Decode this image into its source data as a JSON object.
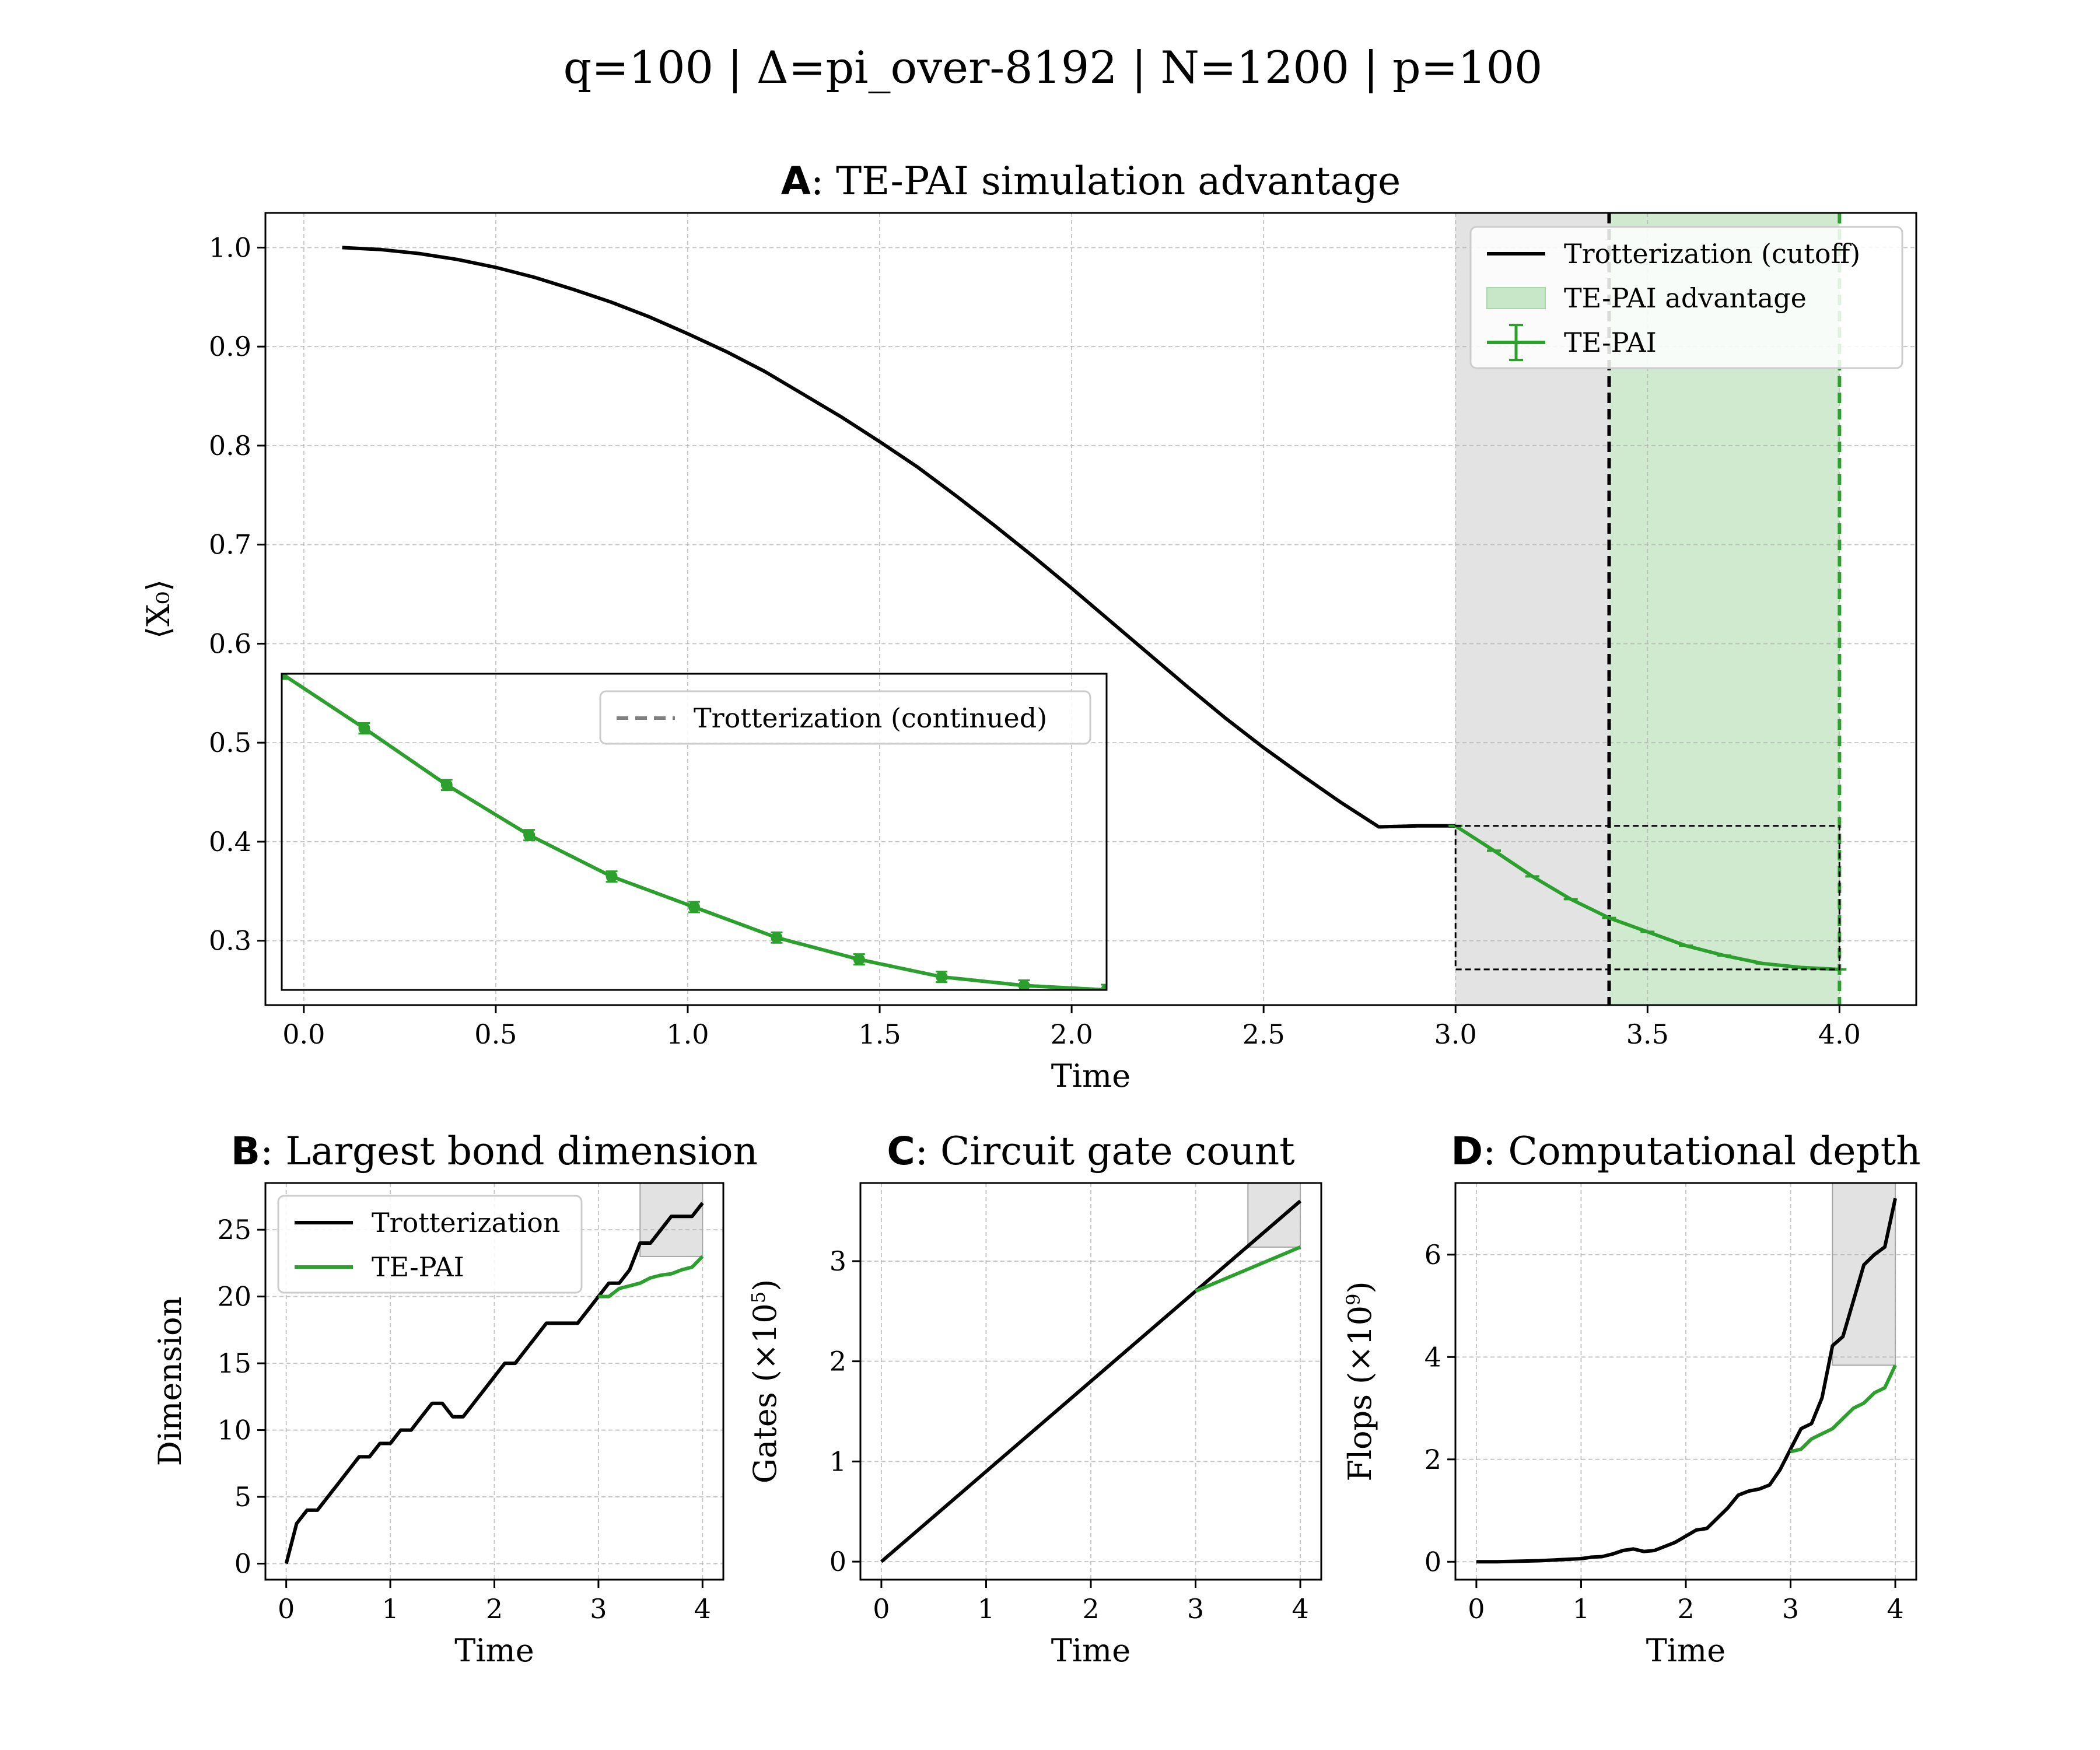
{
  "figure": {
    "suptitle": "q=100 | Δ=pi_over-8192 | N=1200 | p=100"
  },
  "colors": {
    "trotter": "#000000",
    "tepai": "#2ca02c",
    "continued": "#808080",
    "gray_shade": "#d9d9d9",
    "green_shade": "#c8e6c8"
  },
  "chart_data": [
    {
      "id": "A",
      "type": "line",
      "title_letter": "A",
      "title": ": TE-PAI simulation advantage",
      "xlabel": "Time",
      "ylabel": "⟨X₀⟩",
      "xlim": [
        -0.1,
        4.2
      ],
      "ylim": [
        0.235,
        1.035
      ],
      "xticks": [
        "0.0",
        "0.5",
        "1.0",
        "1.5",
        "2.0",
        "2.5",
        "3.0",
        "3.5",
        "4.0"
      ],
      "yticks": [
        "0.3",
        "0.4",
        "0.5",
        "0.6",
        "0.7",
        "0.8",
        "0.9",
        "1.0"
      ],
      "grid": true,
      "legend_position": "top-right",
      "legend": [
        "Trotterization (cutoff)",
        "TE-PAI advantage",
        "TE-PAI"
      ],
      "shaded_regions": [
        {
          "kind": "gray",
          "x": [
            3.0,
            3.4
          ]
        },
        {
          "kind": "green",
          "label": "TE-PAI advantage",
          "x": [
            3.4,
            4.0
          ]
        }
      ],
      "vlines": [
        {
          "x": 3.4,
          "color": "#000000"
        },
        {
          "x": 4.0,
          "color": "#2ca02c"
        }
      ],
      "zoom_box": {
        "x": [
          3.0,
          4.0
        ],
        "y": [
          0.271,
          0.416
        ]
      },
      "series": [
        {
          "name": "Trotterization (cutoff)",
          "x": [
            0.1,
            0.2,
            0.3,
            0.4,
            0.5,
            0.6,
            0.7,
            0.8,
            0.9,
            1.0,
            1.1,
            1.2,
            1.3,
            1.4,
            1.5,
            1.6,
            1.7,
            1.8,
            1.9,
            2.0,
            2.1,
            2.2,
            2.3,
            2.4,
            2.5,
            2.6,
            2.7,
            2.8,
            2.9,
            3.0
          ],
          "y": [
            1.0,
            0.998,
            0.994,
            0.988,
            0.98,
            0.97,
            0.958,
            0.945,
            0.93,
            0.913,
            0.895,
            0.875,
            0.852,
            0.829,
            0.804,
            0.778,
            0.749,
            0.719,
            0.688,
            0.656,
            0.623,
            0.59,
            0.557,
            0.525,
            0.495,
            0.467,
            0.44,
            0.415,
            0.416,
            0.416
          ]
        },
        {
          "name": "TE-PAI",
          "x": [
            3.0,
            3.1,
            3.2,
            3.3,
            3.4,
            3.5,
            3.6,
            3.7,
            3.8,
            3.9,
            4.0
          ],
          "y": [
            0.416,
            0.391,
            0.365,
            0.342,
            0.323,
            0.309,
            0.295,
            0.285,
            0.277,
            0.273,
            0.271
          ]
        }
      ]
    },
    {
      "id": "A-inset",
      "type": "line",
      "legend": [
        "Trotterization (continued)"
      ],
      "xlim": [
        3.0,
        4.0
      ],
      "ylim": [
        0.271,
        0.416
      ],
      "series": [
        {
          "name": "Trotterization (continued)",
          "x": [
            3.0,
            3.1,
            3.2,
            3.3,
            3.4,
            3.5,
            3.6,
            3.7,
            3.8,
            3.9,
            4.0
          ],
          "y": [
            0.416,
            0.391,
            0.365,
            0.342,
            0.323,
            0.309,
            0.295,
            0.285,
            0.277,
            0.273,
            0.271
          ]
        },
        {
          "name": "TE-PAI",
          "x": [
            3.0,
            3.1,
            3.2,
            3.3,
            3.4,
            3.5,
            3.6,
            3.7,
            3.8,
            3.9,
            4.0
          ],
          "y": [
            0.416,
            0.391,
            0.365,
            0.342,
            0.323,
            0.309,
            0.295,
            0.285,
            0.277,
            0.273,
            0.271
          ]
        }
      ]
    },
    {
      "id": "B",
      "type": "line",
      "title_letter": "B",
      "title": ": Largest bond dimension",
      "xlabel": "Time",
      "ylabel": "Dimension",
      "xlim": [
        -0.2,
        4.2
      ],
      "ylim": [
        -1.2,
        28.5
      ],
      "xticks": [
        "0",
        "1",
        "2",
        "3",
        "4"
      ],
      "yticks": [
        "0",
        "5",
        "10",
        "15",
        "20",
        "25"
      ],
      "grid": true,
      "legend_position": "top-left",
      "legend": [
        "Trotterization",
        "TE-PAI"
      ],
      "shaded_regions": [
        {
          "kind": "gray",
          "x": [
            3.4,
            4.0
          ],
          "y": [
            23,
            28.5
          ]
        }
      ],
      "series": [
        {
          "name": "Trotterization",
          "x": [
            0,
            0.1,
            0.2,
            0.3,
            0.4,
            0.5,
            0.6,
            0.7,
            0.8,
            0.9,
            1.0,
            1.1,
            1.2,
            1.3,
            1.4,
            1.5,
            1.6,
            1.7,
            1.8,
            1.9,
            2.0,
            2.1,
            2.2,
            2.3,
            2.4,
            2.5,
            2.6,
            2.7,
            2.8,
            2.9,
            3.0,
            3.1,
            3.2,
            3.3,
            3.4,
            3.5,
            3.6,
            3.7,
            3.8,
            3.9,
            4.0
          ],
          "y": [
            0,
            3,
            4,
            4,
            5,
            6,
            7,
            8,
            8,
            9,
            9,
            10,
            10,
            11,
            12,
            12,
            11,
            11,
            12,
            13,
            14,
            15,
            15,
            16,
            17,
            18,
            18,
            18,
            18,
            19,
            20,
            21,
            21,
            22,
            24,
            24,
            25,
            26,
            26,
            26,
            27
          ]
        },
        {
          "name": "TE-PAI",
          "x": [
            3.0,
            3.1,
            3.2,
            3.3,
            3.4,
            3.5,
            3.6,
            3.7,
            3.8,
            3.9,
            4.0
          ],
          "y": [
            20,
            20,
            20.6,
            20.8,
            21,
            21.4,
            21.6,
            21.7,
            22,
            22.2,
            23
          ]
        }
      ]
    },
    {
      "id": "C",
      "type": "line",
      "title_letter": "C",
      "title": ": Circuit gate count",
      "xlabel": "Time",
      "ylabel": "Gates (×10",
      "ylabel_sup": "5",
      "ylabel_end": ")",
      "xlim": [
        -0.2,
        4.2
      ],
      "ylim": [
        -0.18,
        3.78
      ],
      "xticks": [
        "0",
        "1",
        "2",
        "3",
        "4"
      ],
      "yticks": [
        "0",
        "1",
        "2",
        "3"
      ],
      "grid": true,
      "shaded_regions": [
        {
          "kind": "gray",
          "x": [
            3.5,
            4.0
          ],
          "y": [
            3.14,
            3.78
          ]
        }
      ],
      "series": [
        {
          "name": "Trotterization",
          "x": [
            0,
            4.0
          ],
          "y": [
            0,
            3.6
          ]
        },
        {
          "name": "TE-PAI",
          "x": [
            3.0,
            4.0
          ],
          "y": [
            2.7,
            3.14
          ]
        }
      ]
    },
    {
      "id": "D",
      "type": "line",
      "title_letter": "D",
      "title": ": Computational depth",
      "xlabel": "Time",
      "ylabel": "Flops (×10",
      "ylabel_sup": "9",
      "ylabel_end": ")",
      "xlim": [
        -0.2,
        4.2
      ],
      "ylim": [
        -0.35,
        7.4
      ],
      "xticks": [
        "0",
        "1",
        "2",
        "3",
        "4"
      ],
      "yticks": [
        "0",
        "2",
        "4",
        "6"
      ],
      "grid": true,
      "shaded_regions": [
        {
          "kind": "gray",
          "x": [
            3.4,
            4.0
          ],
          "y": [
            3.84,
            7.4
          ]
        }
      ],
      "series": [
        {
          "name": "Trotterization",
          "x": [
            0,
            0.2,
            0.4,
            0.6,
            0.8,
            1.0,
            1.1,
            1.2,
            1.3,
            1.4,
            1.5,
            1.6,
            1.7,
            1.8,
            1.9,
            2.0,
            2.1,
            2.2,
            2.3,
            2.4,
            2.5,
            2.6,
            2.7,
            2.8,
            2.9,
            3.0,
            3.1,
            3.2,
            3.3,
            3.4,
            3.5,
            3.6,
            3.7,
            3.8,
            3.9,
            4.0
          ],
          "y": [
            0,
            0,
            0.01,
            0.02,
            0.04,
            0.06,
            0.09,
            0.1,
            0.15,
            0.22,
            0.25,
            0.2,
            0.22,
            0.3,
            0.38,
            0.5,
            0.62,
            0.65,
            0.85,
            1.05,
            1.3,
            1.38,
            1.42,
            1.5,
            1.8,
            2.2,
            2.6,
            2.7,
            3.2,
            4.22,
            4.4,
            5.1,
            5.8,
            6.0,
            6.15,
            7.1
          ]
        },
        {
          "name": "TE-PAI",
          "x": [
            3.0,
            3.1,
            3.2,
            3.3,
            3.4,
            3.5,
            3.6,
            3.7,
            3.8,
            3.9,
            4.0
          ],
          "y": [
            2.15,
            2.2,
            2.4,
            2.5,
            2.6,
            2.8,
            3.0,
            3.1,
            3.3,
            3.4,
            3.84
          ]
        }
      ]
    }
  ]
}
